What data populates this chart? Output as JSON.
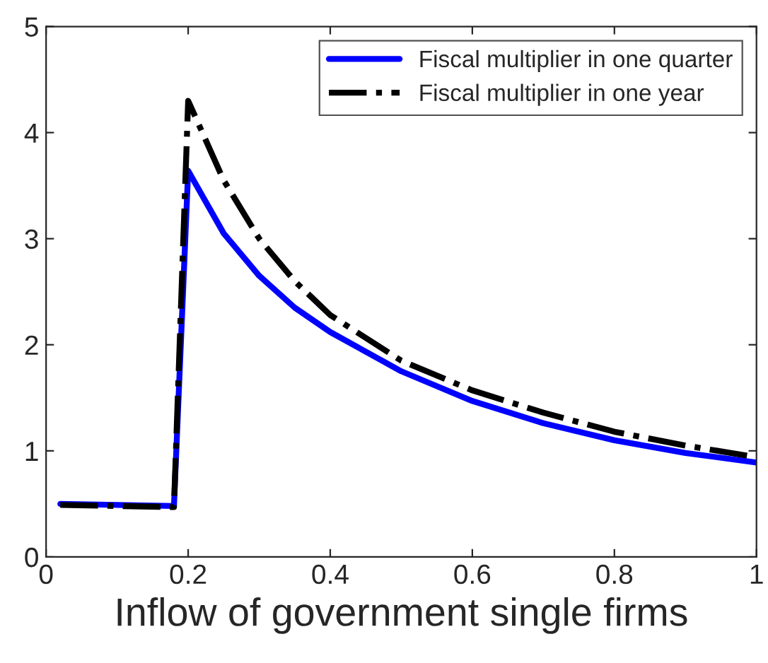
{
  "chart_data": {
    "type": "line",
    "xlabel": "Inflow of government single firms",
    "xlim": [
      0,
      1
    ],
    "xticks": [
      0,
      0.2,
      0.4,
      0.6,
      0.8,
      1
    ],
    "ylim": [
      0,
      5
    ],
    "yticks": [
      0,
      1,
      2,
      3,
      4,
      5
    ],
    "grid": false,
    "legend": "top right",
    "series": [
      {
        "name": "Fiscal multiplier in one quarter",
        "color": "#0000ff",
        "line_style": "solid",
        "x": [
          0.02,
          0.1,
          0.18,
          0.2,
          0.25,
          0.3,
          0.35,
          0.4,
          0.5,
          0.6,
          0.7,
          0.8,
          0.9,
          1
        ],
        "values": [
          0.5,
          0.49,
          0.48,
          3.64,
          3.05,
          2.65,
          2.35,
          2.12,
          1.75,
          1.47,
          1.26,
          1.1,
          0.98,
          0.89
        ]
      },
      {
        "name": "Fiscal multiplier in one year",
        "color": "#000000",
        "line_style": "dashdot",
        "x": [
          0.02,
          0.1,
          0.18,
          0.2,
          0.25,
          0.3,
          0.35,
          0.4,
          0.5,
          0.6,
          0.7,
          0.8,
          0.9,
          1
        ],
        "values": [
          0.49,
          0.48,
          0.47,
          4.3,
          3.55,
          3.0,
          2.6,
          2.28,
          1.85,
          1.57,
          1.36,
          1.18,
          1.05,
          0.94
        ]
      }
    ]
  }
}
